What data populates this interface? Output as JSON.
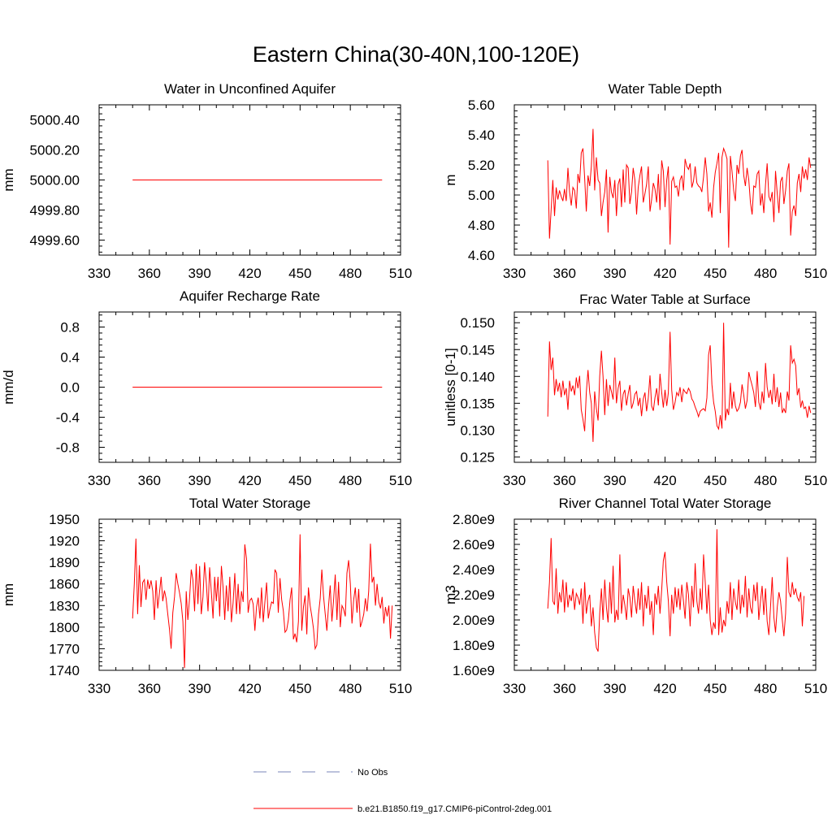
{
  "title": "Eastern China(30-40N,100-120E)",
  "colors": {
    "model": "#ff0000",
    "obs": "#7a86b8",
    "axis": "#000000"
  },
  "legend": [
    {
      "label": "No Obs",
      "style": "dashed",
      "color": "#7a86b8"
    },
    {
      "label": "b.e21.B1850.f19_g17.CMIP6-piControl-2deg.001",
      "style": "solid",
      "color": "#ff0000"
    }
  ],
  "chart_data": [
    {
      "type": "line",
      "title": "Water in Unconfined Aquifer",
      "ylabel": "mm",
      "xlim": [
        330,
        510
      ],
      "ylim": [
        4999.5,
        5000.5
      ],
      "xticks": [
        "330",
        "360",
        "390",
        "420",
        "450",
        "480",
        "510"
      ],
      "yticks": [
        {
          "value": 4999.6,
          "label": "4999.60"
        },
        {
          "value": 4999.8,
          "label": "4999.80"
        },
        {
          "value": 5000.0,
          "label": "5000.00"
        },
        {
          "value": 5000.2,
          "label": "5000.20"
        },
        {
          "value": 5000.4,
          "label": "5000.40"
        }
      ],
      "series": [
        {
          "name": "b.e21.B1850.f19_g17.CMIP6-piControl-2deg.001",
          "x_start": 350,
          "values": [
            5000.0,
            5000.0
          ],
          "x_end": 499
        }
      ]
    },
    {
      "type": "line",
      "title": "Water Table Depth",
      "ylabel": "m",
      "xlim": [
        330,
        510
      ],
      "ylim": [
        4.6,
        5.6
      ],
      "xticks": [
        "330",
        "360",
        "390",
        "420",
        "450",
        "480",
        "510"
      ],
      "yticks": [
        {
          "value": 4.6,
          "label": "4.60"
        },
        {
          "value": 4.8,
          "label": "4.80"
        },
        {
          "value": 5.0,
          "label": "5.00"
        },
        {
          "value": 5.2,
          "label": "5.20"
        },
        {
          "value": 5.4,
          "label": "5.40"
        },
        {
          "value": 5.6,
          "label": "5.60"
        }
      ],
      "series": [
        {
          "name": "b.e21.B1850.f19_g17.CMIP6-piControl-2deg.001",
          "x_start": 350,
          "values": [
            5.23,
            4.71,
            4.9,
            5.1,
            4.86,
            5.05,
            4.97,
            5.03,
            4.99,
            4.96,
            5.04,
            4.96,
            5.18,
            5.02,
            4.93,
            5.05,
            5.03,
            4.91,
            5.14,
            5.08,
            5.28,
            5.31,
            5.11,
            4.89,
            5.13,
            5.06,
            5.19,
            5.44,
            5.03,
            5.25,
            5.1,
            5.08,
            4.86,
            4.95,
            5.02,
            5.17,
            4.75,
            5.12,
            5.02,
            4.98,
            5.1,
            4.86,
            5.07,
            5.11,
            4.92,
            5.17,
            4.95,
            5.2,
            5.18,
            4.94,
            5.02,
            5.18,
            5.1,
            4.87,
            5.05,
            5.13,
            5.19,
            4.95,
            5.01,
            5.07,
            5.19,
            4.89,
            4.97,
            5.08,
            5.04,
            4.95,
            5.14,
            4.9,
            5.23,
            5.16,
            4.92,
            5.1,
            5.19,
            4.67,
            5.09,
            5.12,
            5.05,
            5.06,
            4.99,
            5.1,
            5.13,
            5.03,
            5.24,
            5.19,
            5.17,
            5.21,
            5.05,
            5.09,
            5.19,
            5.08,
            5.06,
            5.05,
            5.02,
            5.12,
            5.25,
            5.14,
            4.89,
            4.95,
            4.85,
            5.05,
            5.15,
            5.21,
            5.28,
            4.88,
            5.25,
            5.31,
            5.28,
            5.24,
            4.65,
            5.26,
            5.16,
            5.03,
            4.96,
            5.2,
            5.14,
            5.26,
            5.3,
            5.13,
            5.06,
            5.18,
            5.1,
            4.95,
            4.87,
            5.06,
            5.05,
            5.14,
            5.16,
            4.93,
            5.01,
            4.88,
            5.07,
            5.21,
            4.99,
            4.96,
            5.02,
            4.82,
            5.16,
            5.01,
            4.88,
            5.09,
            5.12,
            4.94,
            5.03,
            5.16,
            5.21,
            4.73,
            4.89,
            4.93,
            4.86,
            5.08,
            5.14,
            5.02,
            5.19,
            5.11,
            5.17,
            5.1,
            5.25,
            5.18
          ]
        }
      ]
    },
    {
      "type": "line",
      "title": "Aquifer Recharge Rate",
      "ylabel": "mm/d",
      "xlim": [
        330,
        510
      ],
      "ylim": [
        -1.0,
        1.0
      ],
      "xticks": [
        "330",
        "360",
        "390",
        "420",
        "450",
        "480",
        "510"
      ],
      "yticks": [
        {
          "value": -0.8,
          "label": "-0.8"
        },
        {
          "value": -0.4,
          "label": "-0.4"
        },
        {
          "value": 0.0,
          "label": "0.0"
        },
        {
          "value": 0.4,
          "label": "0.4"
        },
        {
          "value": 0.8,
          "label": "0.8"
        }
      ],
      "series": [
        {
          "name": "b.e21.B1850.f19_g17.CMIP6-piControl-2deg.001",
          "x_start": 350,
          "values": [
            0.0,
            0.0
          ],
          "x_end": 499
        }
      ]
    },
    {
      "type": "line",
      "title": "Frac Water Table at Surface",
      "ylabel": "unitless [0-1]",
      "xlim": [
        330,
        510
      ],
      "ylim": [
        0.124,
        0.152
      ],
      "xticks": [
        "330",
        "360",
        "390",
        "420",
        "450",
        "480",
        "510"
      ],
      "yticks": [
        {
          "value": 0.125,
          "label": "0.125"
        },
        {
          "value": 0.13,
          "label": "0.130"
        },
        {
          "value": 0.135,
          "label": "0.135"
        },
        {
          "value": 0.14,
          "label": "0.140"
        },
        {
          "value": 0.145,
          "label": "0.145"
        },
        {
          "value": 0.15,
          "label": "0.150"
        }
      ],
      "series": [
        {
          "name": "b.e21.B1850.f19_g17.CMIP6-piControl-2deg.001",
          "x_start": 350,
          "values": [
            0.1325,
            0.1465,
            0.1412,
            0.1435,
            0.1365,
            0.1395,
            0.1372,
            0.1388,
            0.1361,
            0.1392,
            0.1365,
            0.1378,
            0.1338,
            0.1392,
            0.1372,
            0.1383,
            0.1365,
            0.1398,
            0.1378,
            0.1401,
            0.1338,
            0.132,
            0.1298,
            0.137,
            0.1412,
            0.137,
            0.135,
            0.1278,
            0.1372,
            0.134,
            0.1318,
            0.14,
            0.1448,
            0.14,
            0.1328,
            0.1395,
            0.1345,
            0.1384,
            0.1372,
            0.1357,
            0.1435,
            0.135,
            0.1378,
            0.1392,
            0.1336,
            0.1367,
            0.1375,
            0.1346,
            0.1368,
            0.1384,
            0.134,
            0.135,
            0.1367,
            0.1372,
            0.1345,
            0.136,
            0.1326,
            0.1358,
            0.137,
            0.1335,
            0.136,
            0.1402,
            0.1345,
            0.1336,
            0.136,
            0.1378,
            0.1346,
            0.1405,
            0.137,
            0.1342,
            0.1375,
            0.1345,
            0.137,
            0.1483,
            0.1375,
            0.1338,
            0.1352,
            0.137,
            0.1364,
            0.138,
            0.1352,
            0.1376,
            0.1371,
            0.1368,
            0.1378,
            0.1372,
            0.1358,
            0.1353,
            0.1343,
            0.1335,
            0.1325,
            0.1335,
            0.1338,
            0.134,
            0.1336,
            0.136,
            0.144,
            0.1458,
            0.1385,
            0.1352,
            0.1335,
            0.1308,
            0.1302,
            0.1328,
            0.1303,
            0.15,
            0.1318,
            0.134,
            0.1328,
            0.1388,
            0.134,
            0.1372,
            0.1345,
            0.1335,
            0.134,
            0.1352,
            0.1385,
            0.1365,
            0.134,
            0.1355,
            0.1408,
            0.1395,
            0.1383,
            0.137,
            0.1343,
            0.141,
            0.1352,
            0.1338,
            0.1372,
            0.135,
            0.1425,
            0.138,
            0.136,
            0.1375,
            0.1348,
            0.1405,
            0.1352,
            0.138,
            0.1343,
            0.137,
            0.1332,
            0.134,
            0.1332,
            0.1372,
            0.1355,
            0.1458,
            0.1425,
            0.1432,
            0.142,
            0.1365,
            0.1378,
            0.1342,
            0.1355,
            0.134,
            0.1343,
            0.1323,
            0.1345,
            0.1332
          ]
        }
      ]
    },
    {
      "type": "line",
      "title": "Total Water Storage",
      "ylabel": "mm",
      "xlim": [
        330,
        510
      ],
      "ylim": [
        1740,
        1950
      ],
      "xticks": [
        "330",
        "360",
        "390",
        "420",
        "450",
        "480",
        "510"
      ],
      "yticks": [
        {
          "value": 1740,
          "label": "1740"
        },
        {
          "value": 1770,
          "label": "1770"
        },
        {
          "value": 1800,
          "label": "1800"
        },
        {
          "value": 1830,
          "label": "1830"
        },
        {
          "value": 1860,
          "label": "1860"
        },
        {
          "value": 1890,
          "label": "1890"
        },
        {
          "value": 1920,
          "label": "1920"
        },
        {
          "value": 1950,
          "label": "1950"
        }
      ],
      "series": [
        {
          "name": "b.e21.B1850.f19_g17.CMIP6-piControl-2deg.001",
          "x_start": 350,
          "values": [
            1812,
            1860,
            1923,
            1818,
            1886,
            1828,
            1862,
            1866,
            1838,
            1866,
            1853,
            1865,
            1850,
            1810,
            1865,
            1826,
            1847,
            1870,
            1836,
            1851,
            1840,
            1818,
            1797,
            1770,
            1820,
            1842,
            1875,
            1860,
            1848,
            1833,
            1808,
            1743,
            1850,
            1810,
            1840,
            1880,
            1866,
            1822,
            1888,
            1832,
            1885,
            1818,
            1842,
            1890,
            1862,
            1822,
            1883,
            1849,
            1812,
            1870,
            1836,
            1870,
            1815,
            1885,
            1856,
            1810,
            1858,
            1822,
            1870,
            1807,
            1834,
            1875,
            1818,
            1860,
            1818,
            1850,
            1835,
            1915,
            1895,
            1820,
            1837,
            1840,
            1832,
            1795,
            1828,
            1841,
            1812,
            1855,
            1807,
            1836,
            1862,
            1812,
            1825,
            1835,
            1833,
            1880,
            1875,
            1820,
            1868,
            1838,
            1823,
            1793,
            1796,
            1810,
            1838,
            1855,
            1783,
            1791,
            1779,
            1808,
            1929,
            1795,
            1828,
            1844,
            1790,
            1855,
            1830,
            1815,
            1798,
            1770,
            1775,
            1818,
            1840,
            1880,
            1843,
            1818,
            1795,
            1830,
            1858,
            1808,
            1838,
            1873,
            1810,
            1863,
            1800,
            1830,
            1825,
            1815,
            1875,
            1893,
            1860,
            1805,
            1838,
            1855,
            1820,
            1853,
            1800,
            1808,
            1818,
            1840,
            1822,
            1850,
            1916,
            1862,
            1870,
            1830,
            1860,
            1835,
            1826,
            1842,
            1805,
            1828,
            1815,
            1830,
            1784,
            1830
          ]
        }
      ]
    },
    {
      "type": "line",
      "title": "River Channel Total Water Storage",
      "ylabel": "m3",
      "xlim": [
        330,
        510
      ],
      "ylim": [
        1600000000.0,
        2800000000.0
      ],
      "xticks": [
        "330",
        "360",
        "390",
        "420",
        "450",
        "480",
        "510"
      ],
      "yticks": [
        {
          "value": 1600000000.0,
          "label": "1.60e9"
        },
        {
          "value": 1800000000.0,
          "label": "1.80e9"
        },
        {
          "value": 2000000000.0,
          "label": "2.00e9"
        },
        {
          "value": 2200000000.0,
          "label": "2.20e9"
        },
        {
          "value": 2400000000.0,
          "label": "2.40e9"
        },
        {
          "value": 2600000000.0,
          "label": "2.60e9"
        },
        {
          "value": 2800000000.0,
          "label": "2.80e9"
        }
      ],
      "series": [
        {
          "name": "b.e21.B1850.f19_g17.CMIP6-piControl-2deg.001",
          "x_start": 350,
          "values": [
            2090000000.0,
            2300000000.0,
            2650000000.0,
            2150000000.0,
            2120000000.0,
            2410000000.0,
            2050000000.0,
            2220000000.0,
            2140000000.0,
            2320000000.0,
            2060000000.0,
            2300000000.0,
            2100000000.0,
            2200000000.0,
            2150000000.0,
            2250000000.0,
            2080000000.0,
            2210000000.0,
            2180000000.0,
            2120000000.0,
            2250000000.0,
            1970000000.0,
            2300000000.0,
            2050000000.0,
            2150000000.0,
            2200000000.0,
            1950000000.0,
            2100000000.0,
            1900000000.0,
            1780000000.0,
            1750000000.0,
            2050000000.0,
            2250000000.0,
            2000000000.0,
            2320000000.0,
            2100000000.0,
            1980000000.0,
            2300000000.0,
            2050000000.0,
            2430000000.0,
            1980000000.0,
            2080000000.0,
            2000000000.0,
            2520000000.0,
            2050000000.0,
            2200000000.0,
            2120000000.0,
            2000000000.0,
            2250000000.0,
            2180000000.0,
            2020000000.0,
            2270000000.0,
            2150000000.0,
            2050000000.0,
            2250000000.0,
            2080000000.0,
            2300000000.0,
            1950000000.0,
            2200000000.0,
            2090000000.0,
            2270000000.0,
            2040000000.0,
            2150000000.0,
            1880000000.0,
            2210000000.0,
            2120000000.0,
            2270000000.0,
            2050000000.0,
            2240000000.0,
            2470000000.0,
            2540000000.0,
            2300000000.0,
            2150000000.0,
            1870000000.0,
            2200000000.0,
            2050000000.0,
            2260000000.0,
            2100000000.0,
            2250000000.0,
            2080000000.0,
            2280000000.0,
            2150000000.0,
            2010000000.0,
            2300000000.0,
            2200000000.0,
            1950000000.0,
            2270000000.0,
            2100000000.0,
            2450000000.0,
            2150000000.0,
            2050000000.0,
            2250000000.0,
            2080000000.0,
            2520000000.0,
            2300000000.0,
            2050000000.0,
            2280000000.0,
            2000000000.0,
            1880000000.0,
            1980000000.0,
            1930000000.0,
            2720000000.0,
            1880000000.0,
            2100000000.0,
            1900000000.0,
            2000000000.0,
            1950000000.0,
            2150000000.0,
            2050000000.0,
            2300000000.0,
            2000000000.0,
            2250000000.0,
            2140000000.0,
            2080000000.0,
            2320000000.0,
            2050000000.0,
            2200000000.0,
            2100000000.0,
            2350000000.0,
            2020000000.0,
            2250000000.0,
            2100000000.0,
            2050000000.0,
            2280000000.0,
            2150000000.0,
            2300000000.0,
            2000000000.0,
            2150000000.0,
            2270000000.0,
            2040000000.0,
            2250000000.0,
            1990000000.0,
            1880000000.0,
            2100000000.0,
            2340000000.0,
            2020000000.0,
            1900000000.0,
            2100000000.0,
            2220000000.0,
            2150000000.0,
            2000000000.0,
            1870000000.0,
            2050000000.0,
            2500000000.0,
            2220000000.0,
            2180000000.0,
            2300000000.0,
            2200000000.0,
            2250000000.0,
            2180000000.0,
            2150000000.0,
            2220000000.0,
            1950000000.0,
            2190000000.0
          ]
        }
      ]
    }
  ]
}
